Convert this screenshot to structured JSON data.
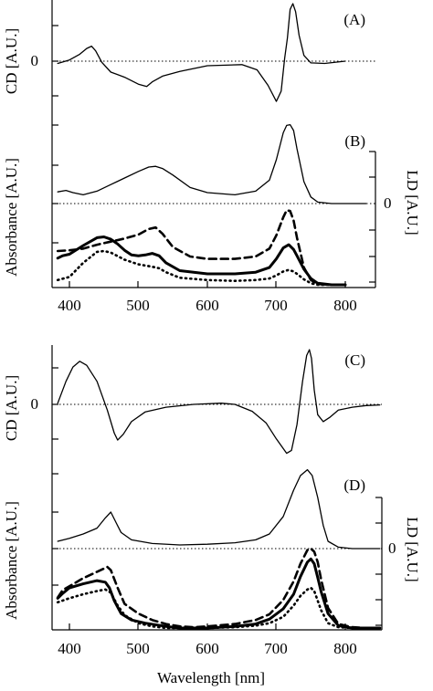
{
  "xlabel": "Wavelength [nm]",
  "x_ticks": [
    "400",
    "500",
    "600",
    "700",
    "800"
  ],
  "chart_data": [
    {
      "panel": "(A)",
      "type": "line",
      "ylabel": "CD [A.U.]",
      "zero_label": "0",
      "xlim": [
        378,
        850
      ],
      "ylim": [
        -1,
        1
      ],
      "zero_line": true,
      "series": [
        {
          "style": "thin-solid",
          "x": [
            383,
            400,
            415,
            425,
            432,
            438,
            447,
            460,
            480,
            500,
            512,
            520,
            535,
            560,
            600,
            650,
            672,
            688,
            700,
            707,
            712,
            716,
            720,
            724,
            728,
            733,
            740,
            750,
            770,
            800
          ],
          "y": [
            -0.04,
            0.02,
            0.12,
            0.22,
            0.26,
            0.18,
            -0.02,
            -0.19,
            -0.28,
            -0.4,
            -0.44,
            -0.36,
            -0.26,
            -0.18,
            -0.08,
            -0.06,
            -0.15,
            -0.42,
            -0.7,
            -0.52,
            0.05,
            0.4,
            0.9,
            1.0,
            0.86,
            0.45,
            0.1,
            -0.03,
            -0.04,
            0.0
          ]
        }
      ]
    },
    {
      "panel": "(B)",
      "type": "line",
      "ylabel": "Absorbance [A.U.]",
      "ylabel_right": "LD [A.U.]",
      "zero_label_right": "0",
      "xlim": [
        378,
        850
      ],
      "ylim_absorbance": [
        0,
        1
      ],
      "ylim_ld": [
        -1,
        1
      ],
      "zero_line": true,
      "series": [
        {
          "style": "thin-solid",
          "axis": "LD",
          "x": [
            383,
            395,
            405,
            420,
            440,
            460,
            480,
            500,
            515,
            525,
            535,
            550,
            575,
            600,
            640,
            670,
            690,
            700,
            710,
            715,
            720,
            725,
            730,
            740,
            750,
            760,
            780,
            800,
            830
          ],
          "y": [
            0.16,
            0.18,
            0.15,
            0.12,
            0.17,
            0.26,
            0.35,
            0.44,
            0.5,
            0.51,
            0.48,
            0.39,
            0.22,
            0.15,
            0.12,
            0.17,
            0.32,
            0.6,
            0.97,
            1.07,
            1.08,
            1.0,
            0.75,
            0.3,
            0.09,
            0.02,
            0.0,
            0.0,
            0.0
          ]
        },
        {
          "style": "dashed",
          "axis": "absorbance",
          "x": [
            383,
            400,
            420,
            440,
            460,
            480,
            500,
            515,
            525,
            535,
            550,
            575,
            600,
            640,
            670,
            690,
            700,
            710,
            715,
            720,
            725,
            730,
            740,
            750,
            760,
            780,
            800
          ],
          "y": [
            0.43,
            0.44,
            0.46,
            0.51,
            0.55,
            0.59,
            0.64,
            0.71,
            0.73,
            0.65,
            0.48,
            0.36,
            0.33,
            0.33,
            0.36,
            0.46,
            0.63,
            0.86,
            0.95,
            0.94,
            0.82,
            0.6,
            0.22,
            0.06,
            0.01,
            0.0,
            0.0
          ]
        },
        {
          "style": "thick-solid",
          "axis": "absorbance",
          "x": [
            383,
            390,
            400,
            420,
            440,
            450,
            460,
            470,
            480,
            490,
            500,
            510,
            520,
            530,
            540,
            560,
            600,
            640,
            670,
            690,
            700,
            710,
            718,
            725,
            730,
            740,
            750,
            760,
            780,
            800
          ],
          "y": [
            0.34,
            0.37,
            0.39,
            0.5,
            0.6,
            0.61,
            0.58,
            0.52,
            0.44,
            0.38,
            0.37,
            0.38,
            0.4,
            0.37,
            0.28,
            0.18,
            0.14,
            0.14,
            0.16,
            0.22,
            0.33,
            0.47,
            0.51,
            0.45,
            0.37,
            0.2,
            0.08,
            0.02,
            0.0,
            0.0
          ]
        },
        {
          "style": "dotted",
          "axis": "absorbance",
          "x": [
            383,
            400,
            420,
            440,
            450,
            460,
            480,
            500,
            520,
            530,
            540,
            560,
            600,
            640,
            670,
            690,
            700,
            710,
            718,
            725,
            730,
            740,
            750,
            760,
            780,
            800
          ],
          "y": [
            0.06,
            0.1,
            0.28,
            0.42,
            0.43,
            0.41,
            0.32,
            0.26,
            0.23,
            0.21,
            0.16,
            0.09,
            0.06,
            0.05,
            0.06,
            0.08,
            0.12,
            0.17,
            0.19,
            0.17,
            0.14,
            0.07,
            0.02,
            0.0,
            0.0,
            0.0
          ]
        }
      ]
    },
    {
      "panel": "(C)",
      "type": "line",
      "ylabel": "CD [A.U.]",
      "zero_label": "0",
      "xlim": [
        378,
        850
      ],
      "ylim": [
        -1,
        1
      ],
      "zero_line": true,
      "series": [
        {
          "style": "thin-solid",
          "x": [
            383,
            395,
            405,
            415,
            425,
            440,
            455,
            465,
            470,
            478,
            490,
            510,
            540,
            580,
            620,
            640,
            665,
            685,
            700,
            715,
            722,
            730,
            738,
            744,
            748,
            751,
            755,
            760,
            768,
            778,
            790,
            810,
            830,
            850
          ],
          "y": [
            0.02,
            0.4,
            0.65,
            0.75,
            0.68,
            0.4,
            -0.1,
            -0.5,
            -0.62,
            -0.52,
            -0.3,
            -0.13,
            -0.05,
            0.0,
            0.02,
            0.0,
            -0.12,
            -0.32,
            -0.6,
            -0.85,
            -0.8,
            -0.35,
            0.4,
            0.85,
            0.95,
            0.8,
            0.25,
            -0.18,
            -0.3,
            -0.22,
            -0.1,
            -0.05,
            -0.02,
            -0.01
          ]
        }
      ]
    },
    {
      "panel": "(D)",
      "type": "line",
      "ylabel": "Absorbance [A.U.]",
      "ylabel_right": "LD [A.U.]",
      "zero_label_right": "0",
      "xlim": [
        378,
        850
      ],
      "ylim_absorbance": [
        0,
        1
      ],
      "ylim_ld": [
        -1,
        1
      ],
      "zero_line": true,
      "series": [
        {
          "style": "thin-solid",
          "axis": "LD",
          "x": [
            383,
            400,
            420,
            440,
            452,
            460,
            468,
            475,
            490,
            520,
            560,
            600,
            640,
            670,
            690,
            710,
            725,
            735,
            745,
            752,
            760,
            768,
            775,
            790,
            810,
            830,
            850
          ],
          "y": [
            0.1,
            0.14,
            0.2,
            0.28,
            0.42,
            0.5,
            0.35,
            0.22,
            0.12,
            0.07,
            0.05,
            0.06,
            0.08,
            0.12,
            0.2,
            0.44,
            0.8,
            1.0,
            1.08,
            1.0,
            0.7,
            0.32,
            0.1,
            0.02,
            0.0,
            0.0,
            0.0
          ]
        },
        {
          "style": "dashed",
          "axis": "absorbance",
          "x": [
            383,
            390,
            400,
            420,
            440,
            455,
            460,
            470,
            480,
            500,
            520,
            540,
            560,
            580,
            600,
            640,
            670,
            690,
            710,
            725,
            735,
            745,
            750,
            755,
            760,
            765,
            775,
            790,
            810,
            830,
            850
          ],
          "y": [
            0.38,
            0.47,
            0.52,
            0.62,
            0.7,
            0.76,
            0.72,
            0.5,
            0.3,
            0.18,
            0.1,
            0.05,
            0.02,
            0.01,
            0.02,
            0.05,
            0.1,
            0.17,
            0.35,
            0.58,
            0.8,
            0.97,
            0.99,
            0.95,
            0.82,
            0.6,
            0.25,
            0.05,
            0.01,
            0.0,
            0.0
          ]
        },
        {
          "style": "thick-solid",
          "axis": "absorbance",
          "x": [
            383,
            390,
            400,
            420,
            440,
            452,
            458,
            465,
            475,
            490,
            510,
            540,
            560,
            600,
            640,
            670,
            690,
            710,
            725,
            735,
            745,
            750,
            755,
            760,
            765,
            775,
            790,
            810,
            830,
            850
          ],
          "y": [
            0.37,
            0.43,
            0.5,
            0.55,
            0.59,
            0.57,
            0.5,
            0.34,
            0.18,
            0.1,
            0.06,
            0.02,
            0.0,
            0.0,
            0.02,
            0.05,
            0.11,
            0.24,
            0.42,
            0.64,
            0.82,
            0.86,
            0.8,
            0.63,
            0.45,
            0.18,
            0.03,
            0.0,
            0.0,
            0.0
          ]
        },
        {
          "style": "dotted",
          "axis": "absorbance",
          "x": [
            383,
            400,
            420,
            440,
            452,
            460,
            470,
            480,
            500,
            520,
            540,
            560,
            600,
            640,
            670,
            690,
            710,
            725,
            735,
            745,
            750,
            755,
            760,
            765,
            775,
            790,
            810,
            830,
            850
          ],
          "y": [
            0.32,
            0.37,
            0.42,
            0.46,
            0.48,
            0.44,
            0.28,
            0.16,
            0.06,
            0.02,
            0.0,
            0.0,
            0.0,
            0.01,
            0.03,
            0.06,
            0.14,
            0.28,
            0.4,
            0.48,
            0.5,
            0.46,
            0.34,
            0.22,
            0.06,
            0.01,
            0.0,
            0.0,
            0.0
          ]
        }
      ]
    }
  ]
}
